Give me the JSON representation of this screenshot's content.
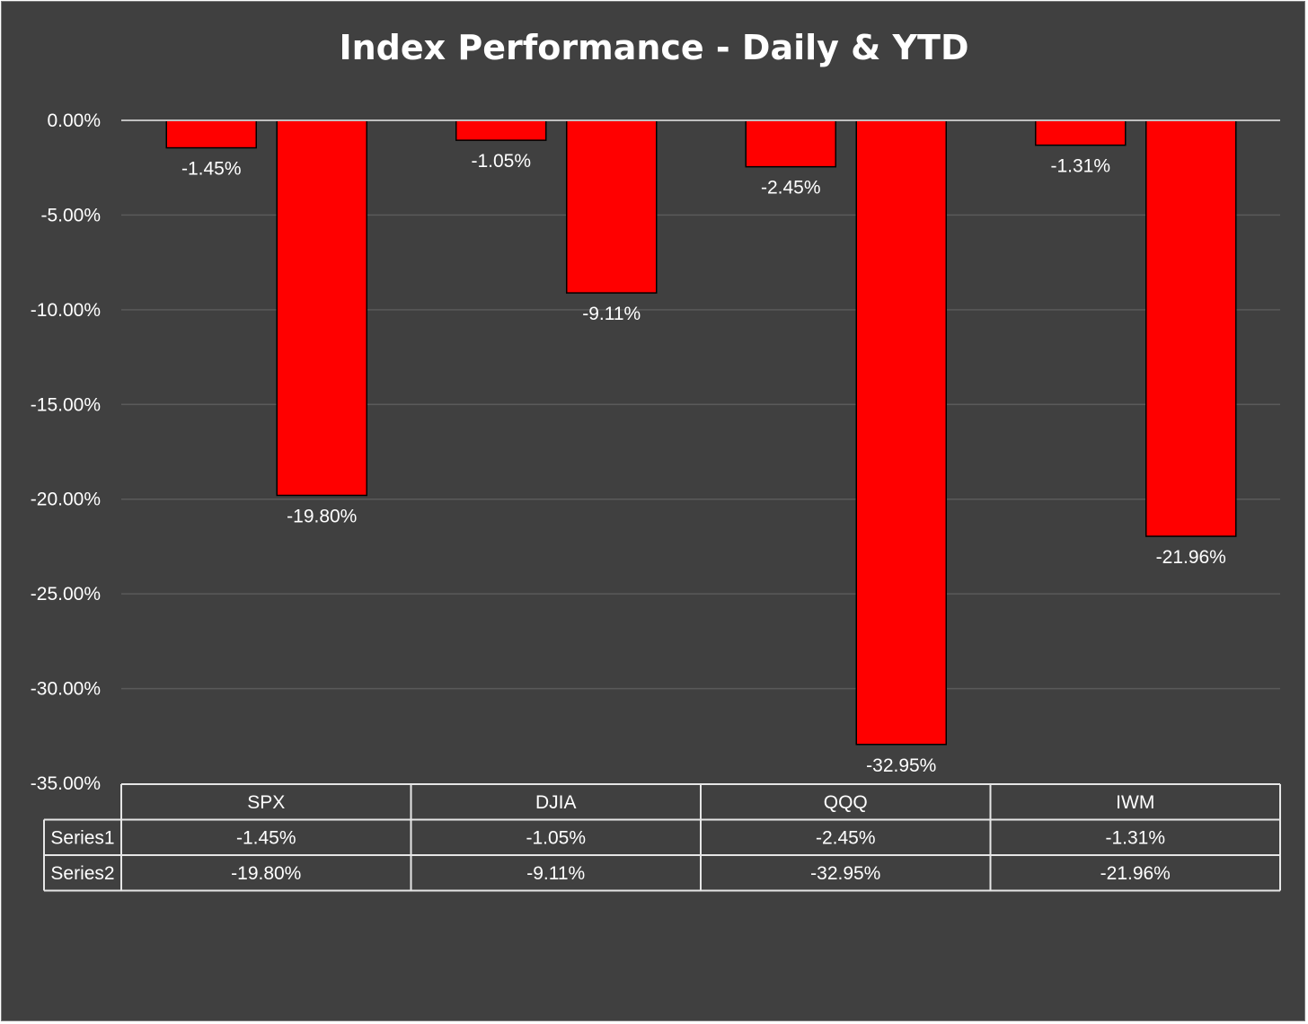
{
  "chart_data": {
    "type": "bar",
    "title": "Index Performance - Daily & YTD",
    "categories": [
      "SPX",
      "DJIA",
      "QQQ",
      "IWM"
    ],
    "series": [
      {
        "name": "Series1",
        "values": [
          -1.45,
          -1.05,
          -2.45,
          -1.31
        ],
        "labels": [
          "-1.45%",
          "-1.05%",
          "-2.45%",
          "-1.31%"
        ]
      },
      {
        "name": "Series2",
        "values": [
          -19.8,
          -9.11,
          -32.95,
          -21.96
        ],
        "labels": [
          "-19.80%",
          "-9.11%",
          "-32.95%",
          "-21.96%"
        ]
      }
    ],
    "ylim": [
      -35,
      0
    ],
    "yticks": [
      0,
      -5,
      -10,
      -15,
      -20,
      -25,
      -30,
      -35
    ],
    "ytick_labels": [
      "0.00%",
      "-5.00%",
      "-10.00%",
      "-15.00%",
      "-20.00%",
      "-25.00%",
      "-30.00%",
      "-35.00%"
    ],
    "grid": true,
    "data_table": true,
    "colors": {
      "background": "#404040",
      "bar": "#ff0000",
      "bar_border": "#000000",
      "grid": "#5a5a5a",
      "axis": "#bfbfbf",
      "text": "#ffffff",
      "table_border": "#e6e6e6"
    }
  }
}
